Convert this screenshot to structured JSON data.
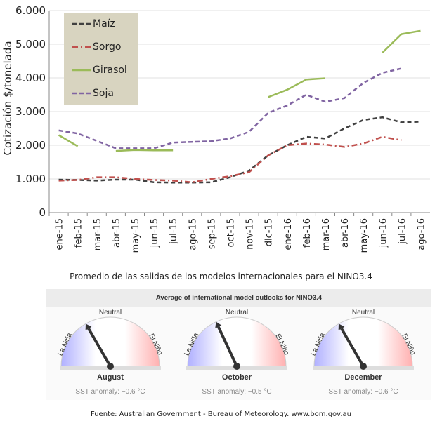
{
  "chart_data": {
    "type": "line",
    "ylabel": "Cotización $/tonelada",
    "ylim": [
      0,
      6000
    ],
    "yticks": [
      "0",
      "1.000",
      "2.000",
      "3.000",
      "4.000",
      "5.000",
      "6.000"
    ],
    "grid": true,
    "legend_placement": "top-left",
    "categories": [
      "ene-15",
      "feb-15",
      "mar-15",
      "abr-15",
      "may-15",
      "jun-15",
      "jul-15",
      "ago-15",
      "sep-15",
      "oct-15",
      "nov-15",
      "dic-15",
      "ene-16",
      "feb-16",
      "mar-16",
      "abr-16",
      "may-16",
      "jun-16",
      "jul-16",
      "ago-16"
    ],
    "series": [
      {
        "name": "Maíz",
        "color": "#404040",
        "style": "dashed",
        "values": [
          980,
          970,
          950,
          980,
          980,
          900,
          890,
          890,
          900,
          1050,
          1250,
          1700,
          2000,
          2250,
          2200,
          2500,
          2750,
          2830,
          2680,
          2700
        ]
      },
      {
        "name": "Sorgo",
        "color": "#c0504d",
        "style": "dashdot",
        "values": [
          950,
          970,
          1050,
          1050,
          1000,
          970,
          950,
          900,
          1000,
          1080,
          1200,
          1700,
          2000,
          2050,
          2020,
          1950,
          2050,
          2250,
          2150,
          null
        ]
      },
      {
        "name": "Girasol",
        "color": "#9bbb59",
        "style": "solid",
        "values": [
          2300,
          1970,
          null,
          1830,
          1860,
          1850,
          1850,
          null,
          null,
          null,
          null,
          3430,
          3650,
          3950,
          3990,
          null,
          null,
          4750,
          5300,
          5400
        ]
      },
      {
        "name": "Soja",
        "color": "#8064a2",
        "style": "dashed",
        "values": [
          2440,
          2350,
          2130,
          1910,
          1910,
          1910,
          2080,
          2100,
          2120,
          2200,
          2400,
          2960,
          3180,
          3500,
          3290,
          3400,
          3850,
          4150,
          4280,
          null
        ]
      }
    ]
  },
  "subtitle": "Promedio de las salidas de los modelos internacionales para el NINO3.4",
  "panel": {
    "title": "Average of international model outlooks for NINO3.4",
    "labels": {
      "left": "La Niña",
      "top": "Neutral",
      "right": "El Niño"
    },
    "gauges": [
      {
        "month": "August",
        "sst": "SST anomaly: −0.6 °C",
        "anomaly": -0.6
      },
      {
        "month": "October",
        "sst": "SST anomaly: −0.5 °C",
        "anomaly": -0.5
      },
      {
        "month": "December",
        "sst": "SST anomaly: −0.6 °C",
        "anomaly": -0.6
      }
    ]
  },
  "source": "Fuente: Australian Government - Bureau of Meteorology. www.bom.gov.au"
}
